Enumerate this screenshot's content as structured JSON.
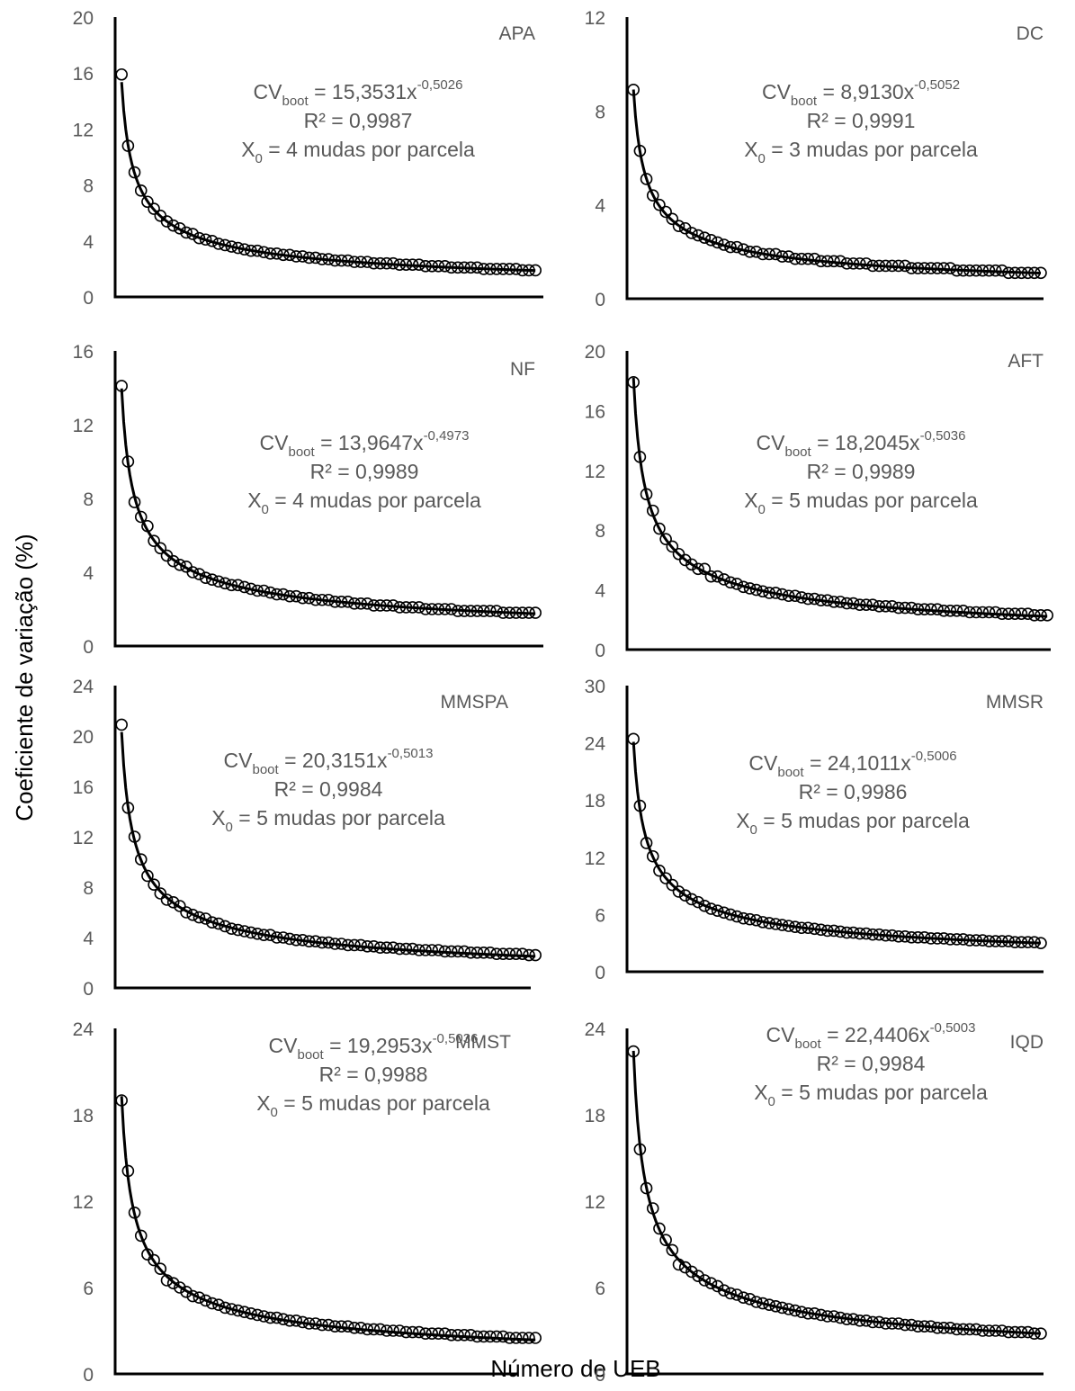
{
  "figure": {
    "ylabel": "Coeficiente de variação (%)",
    "xlabel": "Número de UEB"
  },
  "chart_data": [
    {
      "type": "scatter",
      "title": "APA",
      "a": 15.3531,
      "b": -0.5026,
      "eq_base": "CVboot = 15,3531x",
      "eq_exp": "-0,5026",
      "r2": "R² = 0,9987",
      "x0_label": "X0 = 4 mudas por parcela",
      "xlim": [
        0,
        64
      ],
      "xticks": [
        0,
        8,
        16,
        24,
        32,
        40,
        48,
        56,
        64
      ],
      "ylim": [
        0,
        20
      ],
      "yticks": [
        0,
        4,
        8,
        12,
        16,
        20
      ],
      "x": [
        1,
        2,
        3,
        4,
        5,
        6,
        7,
        8,
        9,
        10,
        11,
        12,
        13,
        14,
        15,
        16,
        17,
        18,
        19,
        20,
        21,
        22,
        23,
        24,
        25,
        26,
        27,
        28,
        29,
        30,
        31,
        32,
        33,
        34,
        35,
        36,
        37,
        38,
        39,
        40,
        41,
        42,
        43,
        44,
        45,
        46,
        47,
        48,
        49,
        50,
        51,
        52,
        53,
        54,
        55,
        56,
        57,
        58,
        59,
        60,
        61,
        62,
        63,
        64,
        65
      ],
      "y": [
        15.9,
        10.8,
        8.9,
        7.6,
        6.8,
        6.3,
        5.8,
        5.4,
        5.1,
        4.9,
        4.6,
        4.5,
        4.2,
        4.1,
        4.0,
        3.8,
        3.7,
        3.6,
        3.5,
        3.4,
        3.3,
        3.3,
        3.2,
        3.1,
        3.1,
        3.0,
        3.0,
        2.9,
        2.9,
        2.8,
        2.8,
        2.7,
        2.7,
        2.6,
        2.6,
        2.6,
        2.5,
        2.5,
        2.5,
        2.4,
        2.4,
        2.4,
        2.4,
        2.3,
        2.3,
        2.3,
        2.3,
        2.2,
        2.2,
        2.2,
        2.2,
        2.1,
        2.1,
        2.1,
        2.1,
        2.1,
        2.0,
        2.0,
        2.0,
        2.0,
        2.0,
        2.0,
        1.9,
        1.9,
        1.9
      ]
    },
    {
      "type": "scatter",
      "title": "DC",
      "a": 8.913,
      "b": -0.5052,
      "eq_base": "CVboot = 8,9130x",
      "eq_exp": "-0,5052",
      "r2": "R² = 0,9991",
      "x0_label": "X0 = 3 mudas por parcela",
      "xlim": [
        0,
        64
      ],
      "xticks": [
        0,
        8,
        16,
        24,
        32,
        40,
        48,
        56,
        64
      ],
      "ylim": [
        0,
        12
      ],
      "yticks": [
        0,
        4,
        8,
        12
      ],
      "x": [
        1,
        2,
        3,
        4,
        5,
        6,
        7,
        8,
        9,
        10,
        11,
        12,
        13,
        14,
        15,
        16,
        17,
        18,
        19,
        20,
        21,
        22,
        23,
        24,
        25,
        26,
        27,
        28,
        29,
        30,
        31,
        32,
        33,
        34,
        35,
        36,
        37,
        38,
        39,
        40,
        41,
        42,
        43,
        44,
        45,
        46,
        47,
        48,
        49,
        50,
        51,
        52,
        53,
        54,
        55,
        56,
        57,
        58,
        59,
        60,
        61,
        62,
        63,
        64
      ],
      "y": [
        8.9,
        6.3,
        5.1,
        4.4,
        4.0,
        3.7,
        3.4,
        3.1,
        3.0,
        2.8,
        2.7,
        2.6,
        2.5,
        2.4,
        2.3,
        2.2,
        2.2,
        2.1,
        2.0,
        2.0,
        1.9,
        1.9,
        1.9,
        1.8,
        1.8,
        1.7,
        1.7,
        1.7,
        1.7,
        1.6,
        1.6,
        1.6,
        1.6,
        1.5,
        1.5,
        1.5,
        1.5,
        1.4,
        1.4,
        1.4,
        1.4,
        1.4,
        1.4,
        1.3,
        1.3,
        1.3,
        1.3,
        1.3,
        1.3,
        1.3,
        1.2,
        1.2,
        1.2,
        1.2,
        1.2,
        1.2,
        1.2,
        1.2,
        1.1,
        1.1,
        1.1,
        1.1,
        1.1,
        1.1
      ]
    },
    {
      "type": "scatter",
      "title": "NF",
      "a": 13.9647,
      "b": -0.4973,
      "eq_base": "CVboot = 13,9647x",
      "eq_exp": "-0,4973",
      "r2": "R² = 0,9989",
      "x0_label": "X0 = 4 mudas por parcela",
      "xlim": [
        0,
        64
      ],
      "xticks": [
        0,
        8,
        16,
        24,
        32,
        40,
        48,
        56,
        64
      ],
      "ylim": [
        0,
        16
      ],
      "yticks": [
        0,
        4,
        8,
        12,
        16
      ],
      "x": [
        1,
        2,
        3,
        4,
        5,
        6,
        7,
        8,
        9,
        10,
        11,
        12,
        13,
        14,
        15,
        16,
        17,
        18,
        19,
        20,
        21,
        22,
        23,
        24,
        25,
        26,
        27,
        28,
        29,
        30,
        31,
        32,
        33,
        34,
        35,
        36,
        37,
        38,
        39,
        40,
        41,
        42,
        43,
        44,
        45,
        46,
        47,
        48,
        49,
        50,
        51,
        52,
        53,
        54,
        55,
        56,
        57,
        58,
        59,
        60,
        61,
        62,
        63,
        64,
        65
      ],
      "y": [
        14.1,
        10.0,
        7.8,
        7.0,
        6.5,
        5.7,
        5.3,
        4.9,
        4.6,
        4.4,
        4.3,
        4.0,
        3.9,
        3.7,
        3.6,
        3.5,
        3.4,
        3.3,
        3.3,
        3.2,
        3.1,
        3.0,
        3.0,
        2.9,
        2.8,
        2.8,
        2.7,
        2.7,
        2.6,
        2.6,
        2.5,
        2.5,
        2.5,
        2.4,
        2.4,
        2.4,
        2.3,
        2.3,
        2.3,
        2.2,
        2.2,
        2.2,
        2.2,
        2.1,
        2.1,
        2.1,
        2.1,
        2.0,
        2.0,
        2.0,
        2.0,
        2.0,
        1.9,
        1.9,
        1.9,
        1.9,
        1.9,
        1.9,
        1.9,
        1.8,
        1.8,
        1.8,
        1.8,
        1.8,
        1.8
      ]
    },
    {
      "type": "scatter",
      "title": "AFT",
      "a": 18.2045,
      "b": -0.5036,
      "eq_base": "CVboot = 18,2045x",
      "eq_exp": "-0,5036",
      "r2": "R² = 0,9989",
      "x0_label": "X0 = 5 mudas por parcela",
      "xlim": [
        0,
        64
      ],
      "xticks": [
        0,
        8,
        16,
        24,
        32,
        40,
        48,
        56,
        64
      ],
      "ylim": [
        0,
        20
      ],
      "yticks": [
        0,
        4,
        8,
        12,
        16,
        20
      ],
      "x": [
        1,
        2,
        3,
        4,
        5,
        6,
        7,
        8,
        9,
        10,
        11,
        12,
        13,
        14,
        15,
        16,
        17,
        18,
        19,
        20,
        21,
        22,
        23,
        24,
        25,
        26,
        27,
        28,
        29,
        30,
        31,
        32,
        33,
        34,
        35,
        36,
        37,
        38,
        39,
        40,
        41,
        42,
        43,
        44,
        45,
        46,
        47,
        48,
        49,
        50,
        51,
        52,
        53,
        54,
        55,
        56,
        57,
        58,
        59,
        60,
        61,
        62,
        63,
        64,
        65
      ],
      "y": [
        17.9,
        12.9,
        10.4,
        9.3,
        8.1,
        7.4,
        6.9,
        6.4,
        6.0,
        5.7,
        5.4,
        5.4,
        4.9,
        4.9,
        4.7,
        4.5,
        4.4,
        4.2,
        4.1,
        4.0,
        3.9,
        3.8,
        3.8,
        3.7,
        3.6,
        3.6,
        3.5,
        3.4,
        3.4,
        3.3,
        3.3,
        3.2,
        3.2,
        3.1,
        3.1,
        3.0,
        3.0,
        3.0,
        2.9,
        2.9,
        2.9,
        2.8,
        2.8,
        2.8,
        2.7,
        2.7,
        2.7,
        2.7,
        2.6,
        2.6,
        2.6,
        2.6,
        2.5,
        2.5,
        2.5,
        2.5,
        2.5,
        2.4,
        2.4,
        2.4,
        2.4,
        2.4,
        2.3,
        2.3,
        2.3
      ]
    },
    {
      "type": "scatter",
      "title": "MMSPA",
      "a": 20.3151,
      "b": -0.5013,
      "eq_base": "CVboot = 20,3151x",
      "eq_exp": "-0,5013",
      "r2": "R² = 0,9984",
      "x0_label": "X0 = 5 mudas por parcela",
      "xlim": [
        0,
        64
      ],
      "xticks": [
        0,
        8,
        16,
        24,
        32,
        40,
        48,
        56,
        64
      ],
      "ylim": [
        0,
        24
      ],
      "yticks": [
        0,
        4,
        8,
        12,
        16,
        20,
        24
      ],
      "x": [
        1,
        2,
        3,
        4,
        5,
        6,
        7,
        8,
        9,
        10,
        11,
        12,
        13,
        14,
        15,
        16,
        17,
        18,
        19,
        20,
        21,
        22,
        23,
        24,
        25,
        26,
        27,
        28,
        29,
        30,
        31,
        32,
        33,
        34,
        35,
        36,
        37,
        38,
        39,
        40,
        41,
        42,
        43,
        44,
        45,
        46,
        47,
        48,
        49,
        50,
        51,
        52,
        53,
        54,
        55,
        56,
        57,
        58,
        59,
        60,
        61,
        62,
        63,
        64,
        65
      ],
      "y": [
        20.9,
        14.3,
        12.0,
        10.2,
        8.9,
        8.2,
        7.5,
        7.0,
        6.8,
        6.5,
        6.0,
        5.8,
        5.6,
        5.5,
        5.2,
        5.1,
        4.9,
        4.7,
        4.6,
        4.5,
        4.4,
        4.3,
        4.2,
        4.2,
        4.0,
        4.0,
        3.9,
        3.8,
        3.8,
        3.7,
        3.7,
        3.6,
        3.6,
        3.5,
        3.5,
        3.4,
        3.4,
        3.4,
        3.3,
        3.3,
        3.2,
        3.2,
        3.2,
        3.1,
        3.1,
        3.1,
        3.0,
        3.0,
        3.0,
        3.0,
        2.9,
        2.9,
        2.9,
        2.9,
        2.8,
        2.8,
        2.8,
        2.8,
        2.7,
        2.7,
        2.7,
        2.7,
        2.7,
        2.6,
        2.6
      ]
    },
    {
      "type": "scatter",
      "title": "MMSR",
      "a": 24.1011,
      "b": -0.5006,
      "eq_base": "CVboot = 24,1011x",
      "eq_exp": "-0,5006",
      "r2": "R² = 0,9986",
      "x0_label": "X0 = 5 mudas por parcela",
      "xlim": [
        0,
        64
      ],
      "xticks": [
        0,
        8,
        16,
        24,
        32,
        40,
        48,
        56,
        64
      ],
      "ylim": [
        0,
        30
      ],
      "yticks": [
        0,
        6,
        12,
        18,
        24,
        30
      ],
      "x": [
        1,
        2,
        3,
        4,
        5,
        6,
        7,
        8,
        9,
        10,
        11,
        12,
        13,
        14,
        15,
        16,
        17,
        18,
        19,
        20,
        21,
        22,
        23,
        24,
        25,
        26,
        27,
        28,
        29,
        30,
        31,
        32,
        33,
        34,
        35,
        36,
        37,
        38,
        39,
        40,
        41,
        42,
        43,
        44,
        45,
        46,
        47,
        48,
        49,
        50,
        51,
        52,
        53,
        54,
        55,
        56,
        57,
        58,
        59,
        60,
        61,
        62,
        63,
        64
      ],
      "y": [
        24.4,
        17.4,
        13.5,
        12.1,
        10.6,
        9.8,
        9.1,
        8.4,
        8.0,
        7.6,
        7.3,
        6.9,
        6.6,
        6.4,
        6.2,
        6.0,
        5.8,
        5.6,
        5.5,
        5.4,
        5.2,
        5.1,
        5.0,
        4.9,
        4.8,
        4.7,
        4.6,
        4.6,
        4.5,
        4.4,
        4.3,
        4.3,
        4.2,
        4.1,
        4.1,
        4.0,
        4.0,
        3.9,
        3.9,
        3.8,
        3.8,
        3.7,
        3.7,
        3.6,
        3.6,
        3.6,
        3.5,
        3.5,
        3.5,
        3.4,
        3.4,
        3.4,
        3.3,
        3.3,
        3.3,
        3.2,
        3.2,
        3.2,
        3.2,
        3.1,
        3.1,
        3.1,
        3.1,
        3.0
      ]
    },
    {
      "type": "scatter",
      "title": "MMST",
      "a": 19.2953,
      "b": -0.5036,
      "eq_base": "CVboot = 19,2953x",
      "eq_exp": "-0,5036",
      "r2": "R² = 0,9988",
      "x0_label": "X0 = 5 mudas por parcela",
      "xlim": [
        0,
        64
      ],
      "xticks": [
        0,
        8,
        16,
        24,
        32,
        40,
        48,
        56,
        64
      ],
      "ylim": [
        0,
        24
      ],
      "yticks": [
        0,
        6,
        12,
        18,
        24
      ],
      "x": [
        1,
        2,
        3,
        4,
        5,
        6,
        7,
        8,
        9,
        10,
        11,
        12,
        13,
        14,
        15,
        16,
        17,
        18,
        19,
        20,
        21,
        22,
        23,
        24,
        25,
        26,
        27,
        28,
        29,
        30,
        31,
        32,
        33,
        34,
        35,
        36,
        37,
        38,
        39,
        40,
        41,
        42,
        43,
        44,
        45,
        46,
        47,
        48,
        49,
        50,
        51,
        52,
        53,
        54,
        55,
        56,
        57,
        58,
        59,
        60,
        61,
        62,
        63,
        64,
        65
      ],
      "y": [
        19.0,
        14.1,
        11.2,
        9.6,
        8.3,
        7.9,
        7.3,
        6.5,
        6.3,
        6.0,
        5.7,
        5.4,
        5.3,
        5.1,
        4.9,
        4.8,
        4.6,
        4.5,
        4.4,
        4.3,
        4.2,
        4.1,
        4.0,
        3.9,
        3.9,
        3.8,
        3.7,
        3.7,
        3.6,
        3.5,
        3.5,
        3.4,
        3.4,
        3.3,
        3.3,
        3.3,
        3.2,
        3.2,
        3.1,
        3.1,
        3.1,
        3.0,
        3.0,
        3.0,
        2.9,
        2.9,
        2.9,
        2.8,
        2.8,
        2.8,
        2.8,
        2.7,
        2.7,
        2.7,
        2.7,
        2.6,
        2.6,
        2.6,
        2.6,
        2.6,
        2.5,
        2.5,
        2.5,
        2.5,
        2.5
      ]
    },
    {
      "type": "scatter",
      "title": "IQD",
      "a": 22.4406,
      "b": -0.5003,
      "eq_base": "CVboot = 22,4406x",
      "eq_exp": "-0,5003",
      "r2": "R² = 0,9984",
      "x0_label": "X0 = 5 mudas por parcela",
      "xlim": [
        0,
        64
      ],
      "xticks": [
        0,
        8,
        16,
        24,
        32,
        40,
        48,
        56,
        64
      ],
      "ylim": [
        0,
        24
      ],
      "yticks": [
        0,
        6,
        12,
        18,
        24
      ],
      "x": [
        1,
        2,
        3,
        4,
        5,
        6,
        7,
        8,
        9,
        10,
        11,
        12,
        13,
        14,
        15,
        16,
        17,
        18,
        19,
        20,
        21,
        22,
        23,
        24,
        25,
        26,
        27,
        28,
        29,
        30,
        31,
        32,
        33,
        34,
        35,
        36,
        37,
        38,
        39,
        40,
        41,
        42,
        43,
        44,
        45,
        46,
        47,
        48,
        49,
        50,
        51,
        52,
        53,
        54,
        55,
        56,
        57,
        58,
        59,
        60,
        61,
        62,
        63,
        64
      ],
      "y": [
        22.4,
        15.6,
        12.9,
        11.5,
        10.1,
        9.3,
        8.6,
        7.6,
        7.4,
        7.1,
        6.8,
        6.5,
        6.3,
        6.1,
        5.8,
        5.6,
        5.5,
        5.3,
        5.2,
        5.0,
        4.9,
        4.8,
        4.7,
        4.6,
        4.5,
        4.4,
        4.3,
        4.2,
        4.2,
        4.1,
        4.0,
        4.0,
        3.9,
        3.8,
        3.8,
        3.7,
        3.7,
        3.6,
        3.6,
        3.5,
        3.5,
        3.5,
        3.4,
        3.4,
        3.3,
        3.3,
        3.3,
        3.2,
        3.2,
        3.2,
        3.1,
        3.1,
        3.1,
        3.1,
        3.0,
        3.0,
        3.0,
        3.0,
        2.9,
        2.9,
        2.9,
        2.9,
        2.8,
        2.8
      ]
    }
  ]
}
